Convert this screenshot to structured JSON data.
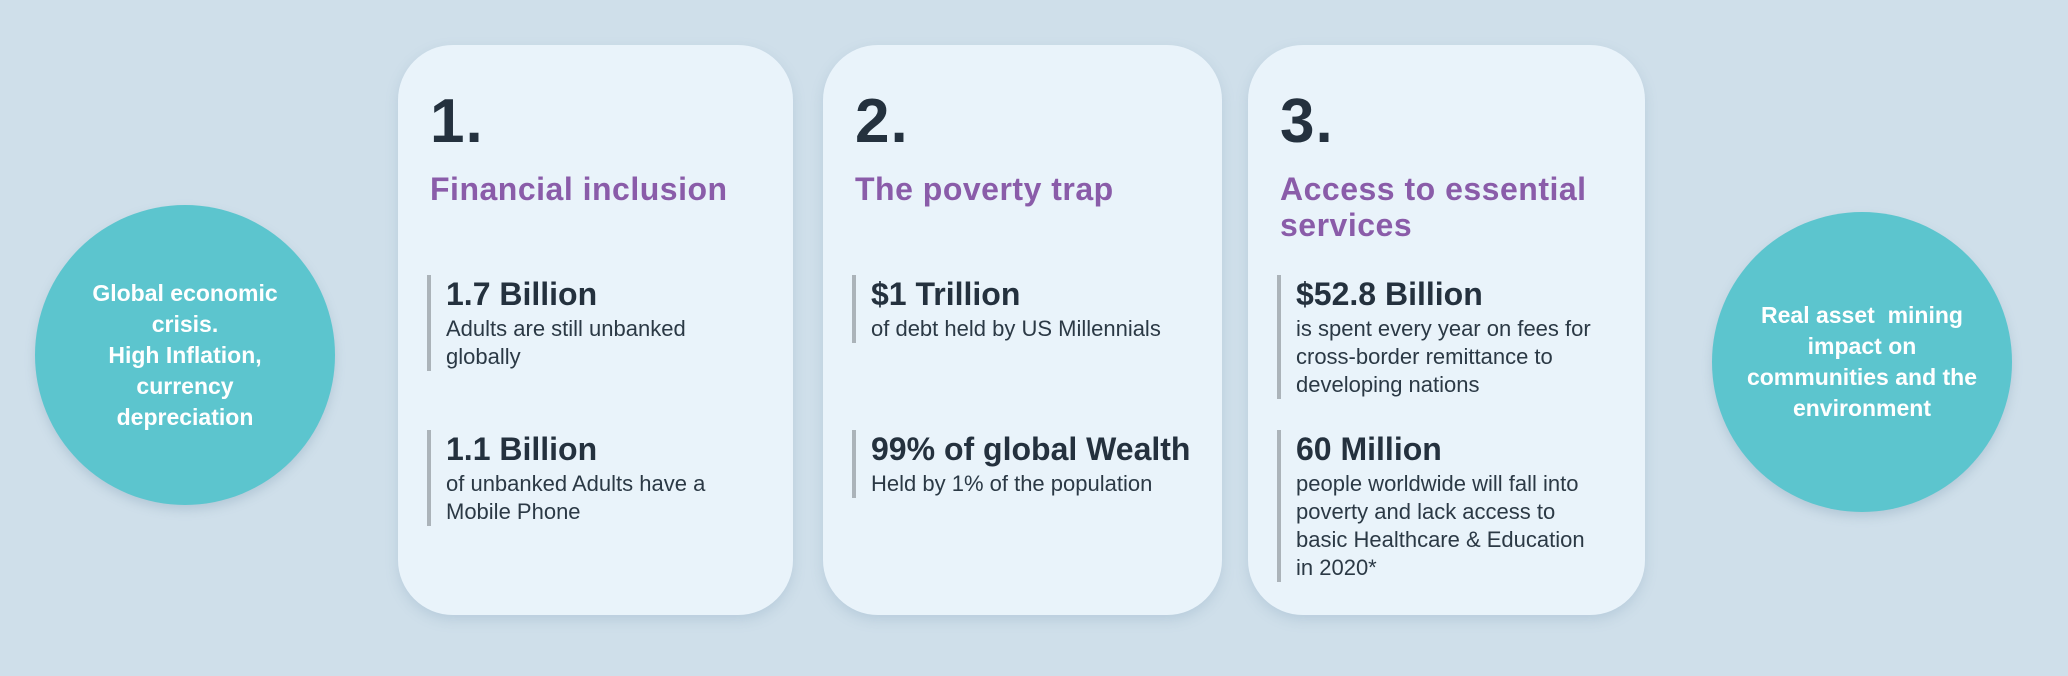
{
  "palette": {
    "background": "#CFDFEA",
    "card_background": "#E9F3FA",
    "circle_teal": "#5CC5CE",
    "title_purple": "#8A5CA9",
    "heading_navy": "#24313E",
    "body_text": "#2B3945",
    "accent_bar_gray": "#ABB3B9",
    "circle_text": "#FFFFFF"
  },
  "left_circle": {
    "lines": [
      "Global economic",
      "crisis.",
      "High Inflation,",
      "currency",
      "depreciation"
    ]
  },
  "right_circle": {
    "lines": [
      "Real asset  mining",
      "impact on",
      "communities and the",
      "environment"
    ]
  },
  "cards": [
    {
      "number": "1.",
      "title_lines": [
        "Financial inclusion"
      ],
      "stats": [
        {
          "value": "1.7 Billion",
          "description": "Adults are still unbanked globally"
        },
        {
          "value": "1.1 Billion",
          "description": "of unbanked Adults have a Mobile Phone"
        }
      ]
    },
    {
      "number": "2.",
      "title_lines": [
        "The poverty trap"
      ],
      "stats": [
        {
          "value": "$1 Trillion",
          "description": "of debt held by US Millennials"
        },
        {
          "value": "99% of global Wealth",
          "description": "Held by 1% of the population"
        }
      ]
    },
    {
      "number": "3.",
      "title_lines": [
        "Access to essential",
        "services"
      ],
      "stats": [
        {
          "value": "$52.8 Billion",
          "description": "is spent every year on fees for cross-border remittance to developing nations"
        },
        {
          "value": "60 Million",
          "description": "people worldwide will fall into poverty and lack access to basic Healthcare & Education in 2020*"
        }
      ]
    }
  ]
}
